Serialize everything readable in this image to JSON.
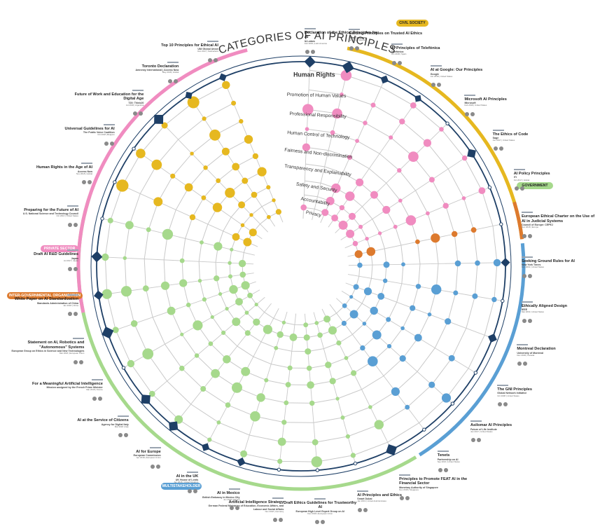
{
  "title": "CATEGORIES OF AI PRINCIPLES",
  "colors": {
    "private_sector": "#f08cc0",
    "civil_society": "#e6b820",
    "government": "#a6d98c",
    "intergovernmental": "#dd7a2e",
    "multistakeholder": "#5a9fd4",
    "rings": "#1e3f66",
    "grid": "#c9c9c9"
  },
  "categories": [
    "Human Rights",
    "Promotion of Human Values",
    "Professional Responsibility",
    "Human Control of Technology",
    "Fairness and Non-discrimination",
    "Transparency and Explainability",
    "Safety and Security",
    "Accountability",
    "Privacy"
  ],
  "sector_labels": {
    "private": "PRIVATE SECTOR",
    "civil": "CIVIL SOCIETY",
    "government": "GOVERNMENT",
    "intergov": "INTER-GOVERNMENTAL ORGANIZATION",
    "multi": "MULTISTAKEHOLDER"
  },
  "documents": [
    {
      "name": "Declaration of the Ethical Principles for AI",
      "org": "IA Latam",
      "meta": "Feb 2019 | Latin America",
      "sector": "private"
    },
    {
      "name": "Guiding Principles on Trusted AI Ethics",
      "org": "Telia Company",
      "meta": "Jan 2019 | Sweden",
      "sector": "private"
    },
    {
      "name": "AI Principles of Telefónica",
      "org": "Telefónica",
      "meta": "Oct 2018 | Spain",
      "sector": "private"
    },
    {
      "name": "AI at Google: Our Principles",
      "org": "Google",
      "meta": "Jun 2018 | United States",
      "sector": "private"
    },
    {
      "name": "Microsoft AI Principles",
      "org": "Microsoft",
      "meta": "Feb 2018 | United States",
      "sector": "private"
    },
    {
      "name": "The Ethics of Code",
      "org": "Sage",
      "meta": "Jun 2017 | United States",
      "sector": "private"
    },
    {
      "name": "AI Policy Principles",
      "org": "ITI",
      "meta": "Oct 2017 | Global",
      "sector": "private"
    },
    {
      "name": "European Ethical Charter on the Use of AI in Judicial Systems",
      "org": "Council of Europe: CEPEJ",
      "meta": "Dec 2018 | Europe",
      "sector": "intergov"
    },
    {
      "name": "Seeking Ground Rules for AI",
      "org": "New York Times",
      "meta": "Mar 2019 | United States",
      "sector": "multi"
    },
    {
      "name": "Ethically Aligned Design",
      "org": "IEEE",
      "meta": "Mar 2019 | United States",
      "sector": "multi"
    },
    {
      "name": "Montreal Declaration",
      "org": "University of Montreal",
      "meta": "Dec 2018 | Canada",
      "sector": "multi"
    },
    {
      "name": "The GNI Principles",
      "org": "Global Network Initiative",
      "meta": "Oct 2008 | United States",
      "sector": "multi"
    },
    {
      "name": "Asilomar AI Principles",
      "org": "Future of Life Institute",
      "meta": "Jan 2017 | United States",
      "sector": "multi"
    },
    {
      "name": "Tenets",
      "org": "Partnership on AI",
      "meta": "Sep 2016 | United States",
      "sector": "multi"
    },
    {
      "name": "Principles to Promote FEAT AI in the Financial Sector",
      "org": "Monetary Authority of Singapore",
      "meta": "Nov 2018 | Singapore",
      "sector": "government"
    },
    {
      "name": "AI Principles and Ethics",
      "org": "Smart Dubai",
      "meta": "Jan 2019 | United Arab Emirates",
      "sector": "government"
    },
    {
      "name": "Draft Ethics Guidelines for Trustworthy AI",
      "org": "European High Level Expert Group on AI",
      "meta": "Dec 2018 | European Union",
      "sector": "government"
    },
    {
      "name": "Artificial Intelligence Strategy",
      "org": "German Federal Ministries of Education, Economic Affairs, and Labour and Social Affairs",
      "meta": "Nov 2018 | Germany",
      "sector": "government"
    },
    {
      "name": "AI in Mexico",
      "org": "British Embassy in Mexico City",
      "meta": "Jun 2018 | Mexico",
      "sector": "government"
    },
    {
      "name": "AI in the UK",
      "org": "UK House of Lords",
      "meta": "Apr 2018 | United Kingdom",
      "sector": "government"
    },
    {
      "name": "AI for Europe",
      "org": "European Commission",
      "meta": "Apr 2018 | European Union",
      "sector": "government"
    },
    {
      "name": "AI at the Service of Citizens",
      "org": "Agency for Digital Italy",
      "meta": "Mar 2018 | Italy",
      "sector": "government"
    },
    {
      "name": "For a Meaningful Artificial Intelligence",
      "org": "Mission assigned by the French Prime Minister",
      "meta": "Mar 2018 | France",
      "sector": "government"
    },
    {
      "name": "Statement on AI, Robotics and \"Autonomous\" Systems",
      "org": "European Group on Ethics in Science and New Technologies",
      "meta": "Mar 2018 | European Union",
      "sector": "government"
    },
    {
      "name": "White Paper on AI Standardization",
      "org": "Standards Administration of China",
      "meta": "Jan 2018 | China",
      "sector": "government"
    },
    {
      "name": "Draft AI R&D Guidelines",
      "org": "Japan",
      "meta": "Jul 2017 | Japan",
      "sector": "government"
    },
    {
      "name": "Preparing for the Future of AI",
      "org": "U.S. National Science and Technology Council",
      "meta": "Oct 2016 | United States",
      "sector": "government"
    },
    {
      "name": "Human Rights in the Age of AI",
      "org": "Access Now",
      "meta": "Nov 2018 | Global",
      "sector": "civil"
    },
    {
      "name": "Universal Guidelines for AI",
      "org": "The Public Voice Coalition",
      "meta": "Oct 2018 | Belgium",
      "sector": "civil"
    },
    {
      "name": "Future of Work and Education for the Digital Age",
      "org": "T20: Think20",
      "meta": "Jul 2018 | Argentina",
      "sector": "civil"
    },
    {
      "name": "Toronto Declaration",
      "org": "Amnesty International | Access Now",
      "meta": "May 2018 | Global",
      "sector": "civil"
    },
    {
      "name": "Top 10 Principles for Ethical AI",
      "org": "UNI Global Union",
      "meta": "Dec 2017 | Switzerland",
      "sector": "civil"
    }
  ]
}
